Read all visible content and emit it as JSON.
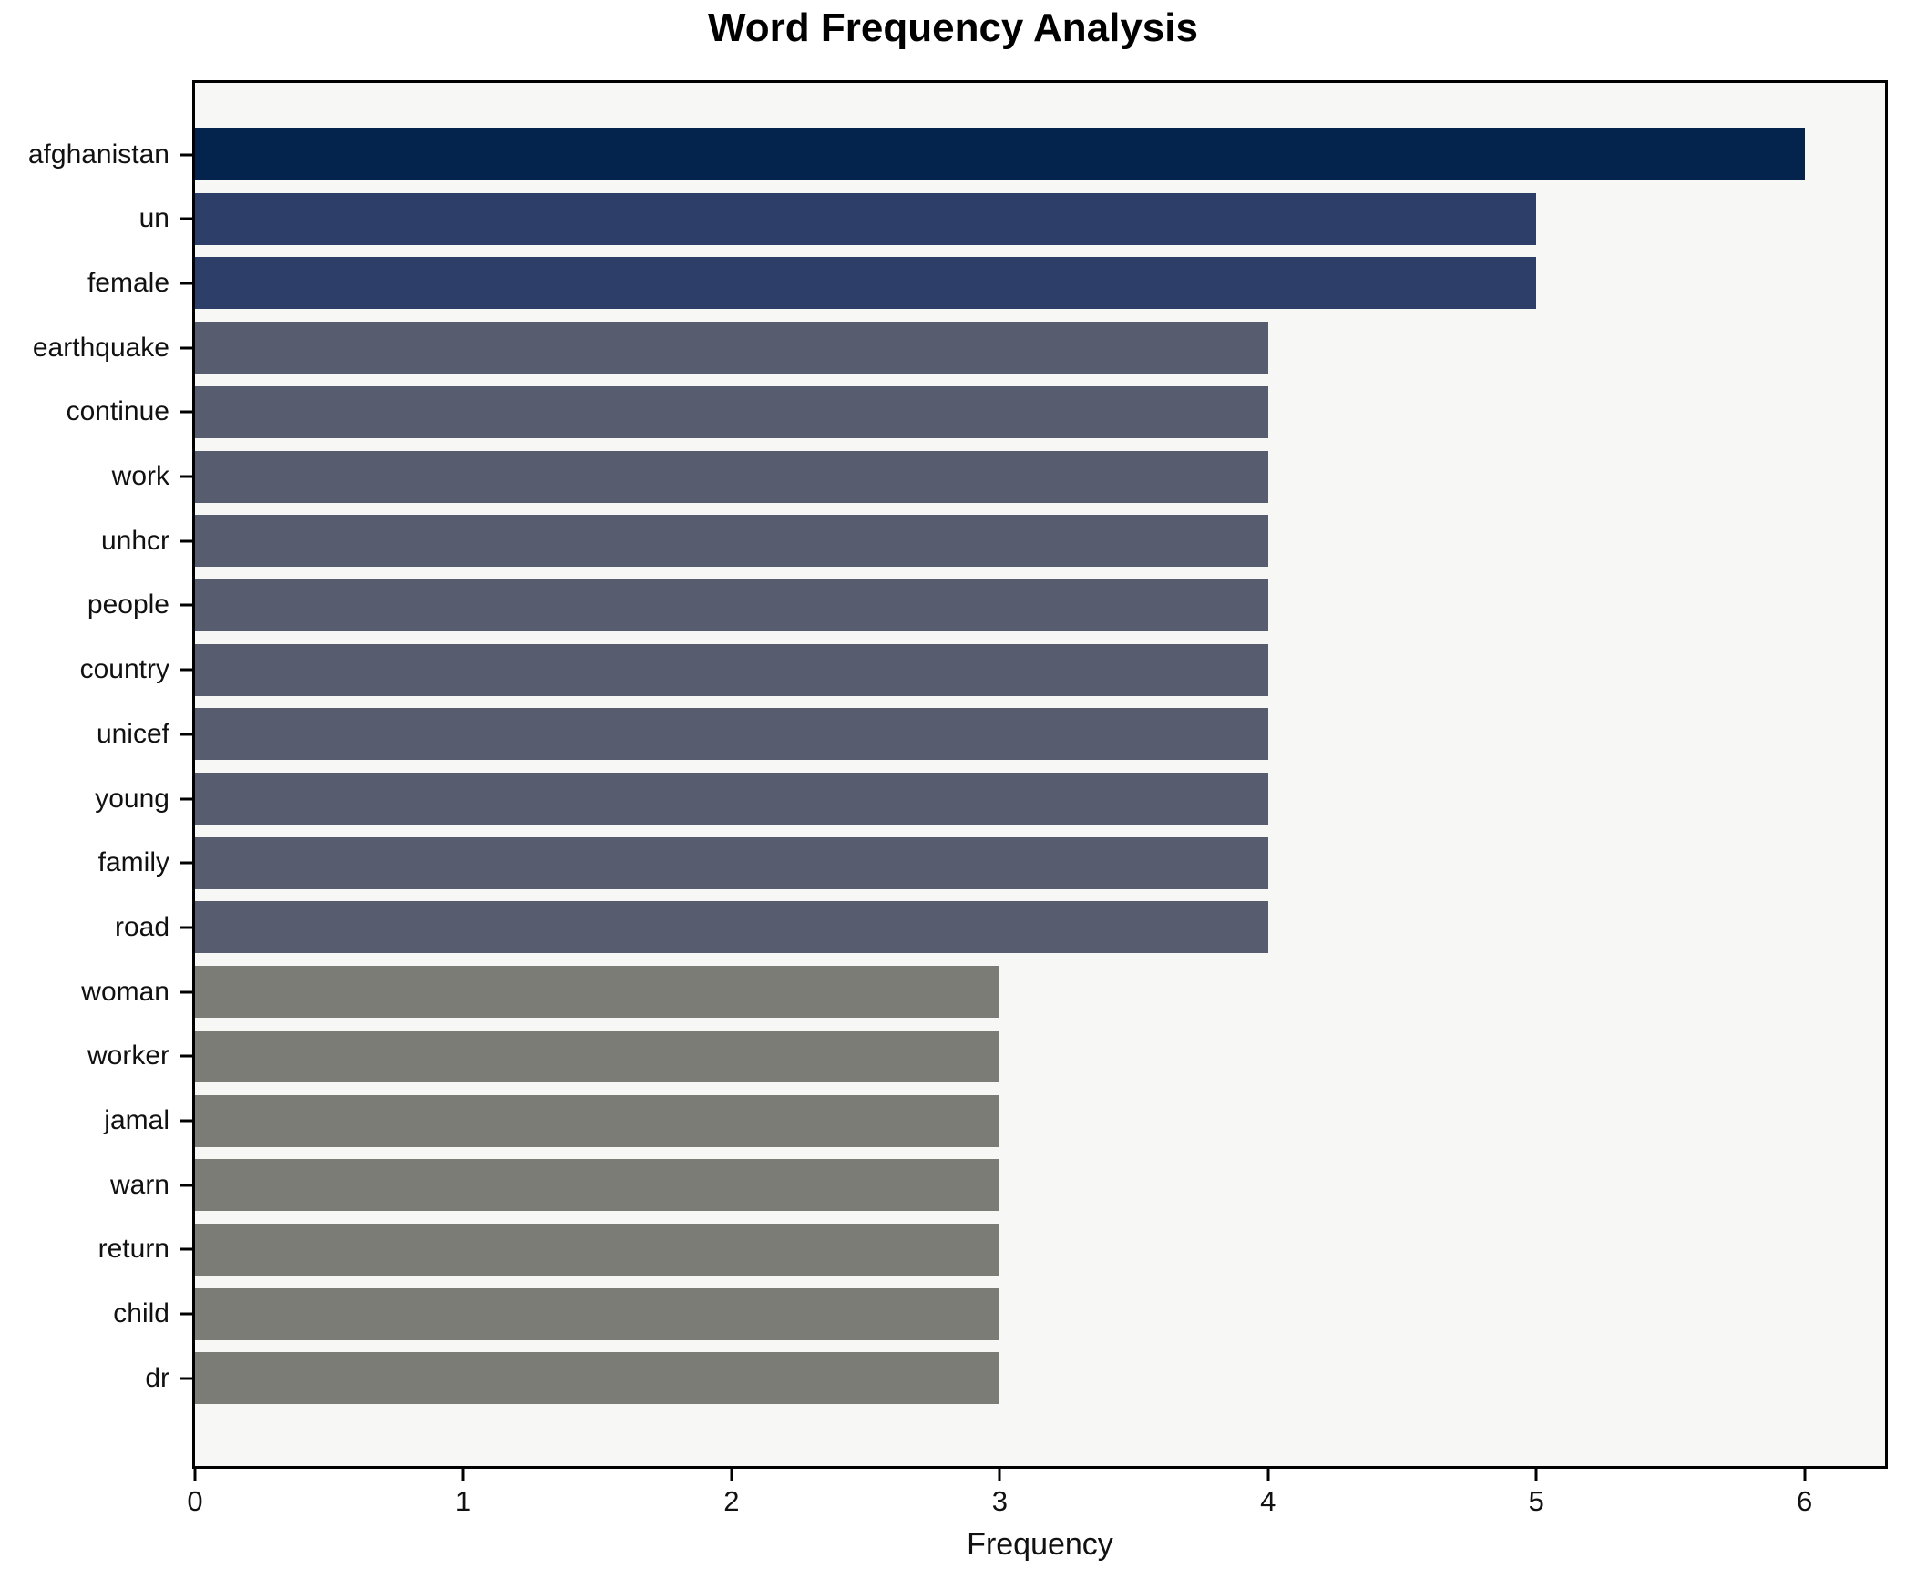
{
  "chart_data": {
    "type": "bar",
    "orientation": "horizontal",
    "title": "Word Frequency Analysis",
    "xlabel": "Frequency",
    "ylabel": "",
    "categories": [
      "afghanistan",
      "un",
      "female",
      "earthquake",
      "continue",
      "work",
      "unhcr",
      "people",
      "country",
      "unicef",
      "young",
      "family",
      "road",
      "woman",
      "worker",
      "jamal",
      "warn",
      "return",
      "child",
      "dr"
    ],
    "values": [
      6,
      5,
      5,
      4,
      4,
      4,
      4,
      4,
      4,
      4,
      4,
      4,
      4,
      3,
      3,
      3,
      3,
      3,
      3,
      3
    ],
    "bar_colors": [
      "#04234d",
      "#2d3e69",
      "#2d3e69",
      "#575d6e",
      "#575d6e",
      "#575d6e",
      "#575d6e",
      "#575d6e",
      "#575d6e",
      "#575d6e",
      "#575d6e",
      "#575d6e",
      "#575d6e",
      "#7c7c76",
      "#7c7c76",
      "#7c7c76",
      "#7c7c76",
      "#7c7c76",
      "#7c7c76",
      "#7c7c76"
    ],
    "xticks": [
      0,
      1,
      2,
      3,
      4,
      5,
      6
    ],
    "xtick_labels": [
      "0",
      "1",
      "2",
      "3",
      "4",
      "5",
      "6"
    ],
    "xlim": [
      0,
      6.3
    ],
    "grid": false,
    "legend": false,
    "plot_background": "#f7f7f5",
    "figure_background": "#ffffff",
    "spine_color": "#000000"
  }
}
